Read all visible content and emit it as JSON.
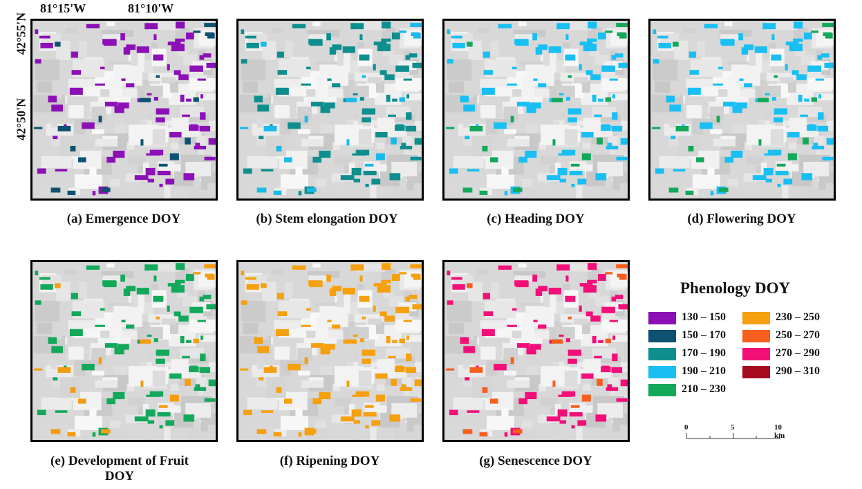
{
  "coords": {
    "lon_left": "81°15'W",
    "lon_right": "81°10'W",
    "lat_top": "42°55'N",
    "lat_bottom": "42°50'N"
  },
  "panels": [
    {
      "caption": "(a) Emergence DOY",
      "colors": [
        "#8b11b6",
        "#0e5170"
      ]
    },
    {
      "caption": "(b) Stem elongation DOY",
      "colors": [
        "#0f8e8e",
        "#0e5170",
        "#1ab9ea"
      ]
    },
    {
      "caption": "(c) Heading DOY",
      "colors": [
        "#19bff3",
        "#13a85a"
      ]
    },
    {
      "caption": "(d) Flowering DOY",
      "colors": [
        "#19bff3",
        "#13a85a"
      ]
    },
    {
      "caption": "(e) Development of Fruit DOY",
      "colors": [
        "#13a85a",
        "#f39c12"
      ]
    },
    {
      "caption": "(f) Ripening DOY",
      "colors": [
        "#f5a00e",
        "#f5a00e"
      ]
    },
    {
      "caption": "(g) Senescence DOY",
      "colors": [
        "#f20f78",
        "#f75f1e"
      ]
    }
  ],
  "legend": {
    "title": "Phenology DOY",
    "items": [
      {
        "label": "130 – 150",
        "color": "#8b11b6"
      },
      {
        "label": "150 – 170",
        "color": "#0e5170"
      },
      {
        "label": "170 – 190",
        "color": "#0f8e8e"
      },
      {
        "label": "190 – 210",
        "color": "#19bff3"
      },
      {
        "label": "210 – 230",
        "color": "#13a85a"
      },
      {
        "label": "230 – 250",
        "color": "#f5a00e"
      },
      {
        "label": "250 – 270",
        "color": "#f75f1e"
      },
      {
        "label": "270 – 290",
        "color": "#f20f78"
      },
      {
        "label": "290 – 310",
        "color": "#a50a1e"
      }
    ]
  },
  "scale_bar": {
    "ticks": [
      "0",
      "5",
      "10 km"
    ]
  }
}
